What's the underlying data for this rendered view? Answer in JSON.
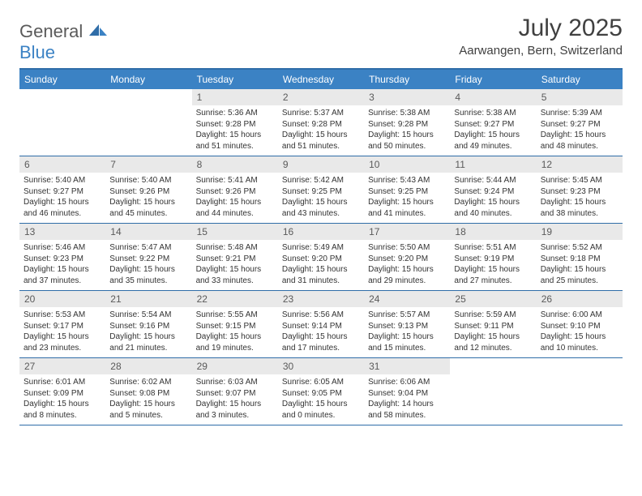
{
  "brand": {
    "name_part1": "General",
    "name_part2": "Blue"
  },
  "title": {
    "month_year": "July 2025",
    "location": "Aarwangen, Bern, Switzerland"
  },
  "colors": {
    "header_bg": "#3b82c4",
    "border": "#2f6da8",
    "daynum_bg": "#e9e9e9",
    "text": "#333333",
    "title_text": "#404040"
  },
  "day_names": [
    "Sunday",
    "Monday",
    "Tuesday",
    "Wednesday",
    "Thursday",
    "Friday",
    "Saturday"
  ],
  "weeks": [
    [
      null,
      null,
      {
        "n": "1",
        "sunrise": "5:36 AM",
        "sunset": "9:28 PM",
        "daylight": "15 hours and 51 minutes."
      },
      {
        "n": "2",
        "sunrise": "5:37 AM",
        "sunset": "9:28 PM",
        "daylight": "15 hours and 51 minutes."
      },
      {
        "n": "3",
        "sunrise": "5:38 AM",
        "sunset": "9:28 PM",
        "daylight": "15 hours and 50 minutes."
      },
      {
        "n": "4",
        "sunrise": "5:38 AM",
        "sunset": "9:27 PM",
        "daylight": "15 hours and 49 minutes."
      },
      {
        "n": "5",
        "sunrise": "5:39 AM",
        "sunset": "9:27 PM",
        "daylight": "15 hours and 48 minutes."
      }
    ],
    [
      {
        "n": "6",
        "sunrise": "5:40 AM",
        "sunset": "9:27 PM",
        "daylight": "15 hours and 46 minutes."
      },
      {
        "n": "7",
        "sunrise": "5:40 AM",
        "sunset": "9:26 PM",
        "daylight": "15 hours and 45 minutes."
      },
      {
        "n": "8",
        "sunrise": "5:41 AM",
        "sunset": "9:26 PM",
        "daylight": "15 hours and 44 minutes."
      },
      {
        "n": "9",
        "sunrise": "5:42 AM",
        "sunset": "9:25 PM",
        "daylight": "15 hours and 43 minutes."
      },
      {
        "n": "10",
        "sunrise": "5:43 AM",
        "sunset": "9:25 PM",
        "daylight": "15 hours and 41 minutes."
      },
      {
        "n": "11",
        "sunrise": "5:44 AM",
        "sunset": "9:24 PM",
        "daylight": "15 hours and 40 minutes."
      },
      {
        "n": "12",
        "sunrise": "5:45 AM",
        "sunset": "9:23 PM",
        "daylight": "15 hours and 38 minutes."
      }
    ],
    [
      {
        "n": "13",
        "sunrise": "5:46 AM",
        "sunset": "9:23 PM",
        "daylight": "15 hours and 37 minutes."
      },
      {
        "n": "14",
        "sunrise": "5:47 AM",
        "sunset": "9:22 PM",
        "daylight": "15 hours and 35 minutes."
      },
      {
        "n": "15",
        "sunrise": "5:48 AM",
        "sunset": "9:21 PM",
        "daylight": "15 hours and 33 minutes."
      },
      {
        "n": "16",
        "sunrise": "5:49 AM",
        "sunset": "9:20 PM",
        "daylight": "15 hours and 31 minutes."
      },
      {
        "n": "17",
        "sunrise": "5:50 AM",
        "sunset": "9:20 PM",
        "daylight": "15 hours and 29 minutes."
      },
      {
        "n": "18",
        "sunrise": "5:51 AM",
        "sunset": "9:19 PM",
        "daylight": "15 hours and 27 minutes."
      },
      {
        "n": "19",
        "sunrise": "5:52 AM",
        "sunset": "9:18 PM",
        "daylight": "15 hours and 25 minutes."
      }
    ],
    [
      {
        "n": "20",
        "sunrise": "5:53 AM",
        "sunset": "9:17 PM",
        "daylight": "15 hours and 23 minutes."
      },
      {
        "n": "21",
        "sunrise": "5:54 AM",
        "sunset": "9:16 PM",
        "daylight": "15 hours and 21 minutes."
      },
      {
        "n": "22",
        "sunrise": "5:55 AM",
        "sunset": "9:15 PM",
        "daylight": "15 hours and 19 minutes."
      },
      {
        "n": "23",
        "sunrise": "5:56 AM",
        "sunset": "9:14 PM",
        "daylight": "15 hours and 17 minutes."
      },
      {
        "n": "24",
        "sunrise": "5:57 AM",
        "sunset": "9:13 PM",
        "daylight": "15 hours and 15 minutes."
      },
      {
        "n": "25",
        "sunrise": "5:59 AM",
        "sunset": "9:11 PM",
        "daylight": "15 hours and 12 minutes."
      },
      {
        "n": "26",
        "sunrise": "6:00 AM",
        "sunset": "9:10 PM",
        "daylight": "15 hours and 10 minutes."
      }
    ],
    [
      {
        "n": "27",
        "sunrise": "6:01 AM",
        "sunset": "9:09 PM",
        "daylight": "15 hours and 8 minutes."
      },
      {
        "n": "28",
        "sunrise": "6:02 AM",
        "sunset": "9:08 PM",
        "daylight": "15 hours and 5 minutes."
      },
      {
        "n": "29",
        "sunrise": "6:03 AM",
        "sunset": "9:07 PM",
        "daylight": "15 hours and 3 minutes."
      },
      {
        "n": "30",
        "sunrise": "6:05 AM",
        "sunset": "9:05 PM",
        "daylight": "15 hours and 0 minutes."
      },
      {
        "n": "31",
        "sunrise": "6:06 AM",
        "sunset": "9:04 PM",
        "daylight": "14 hours and 58 minutes."
      },
      null,
      null
    ]
  ],
  "labels": {
    "sunrise": "Sunrise:",
    "sunset": "Sunset:",
    "daylight": "Daylight:"
  }
}
